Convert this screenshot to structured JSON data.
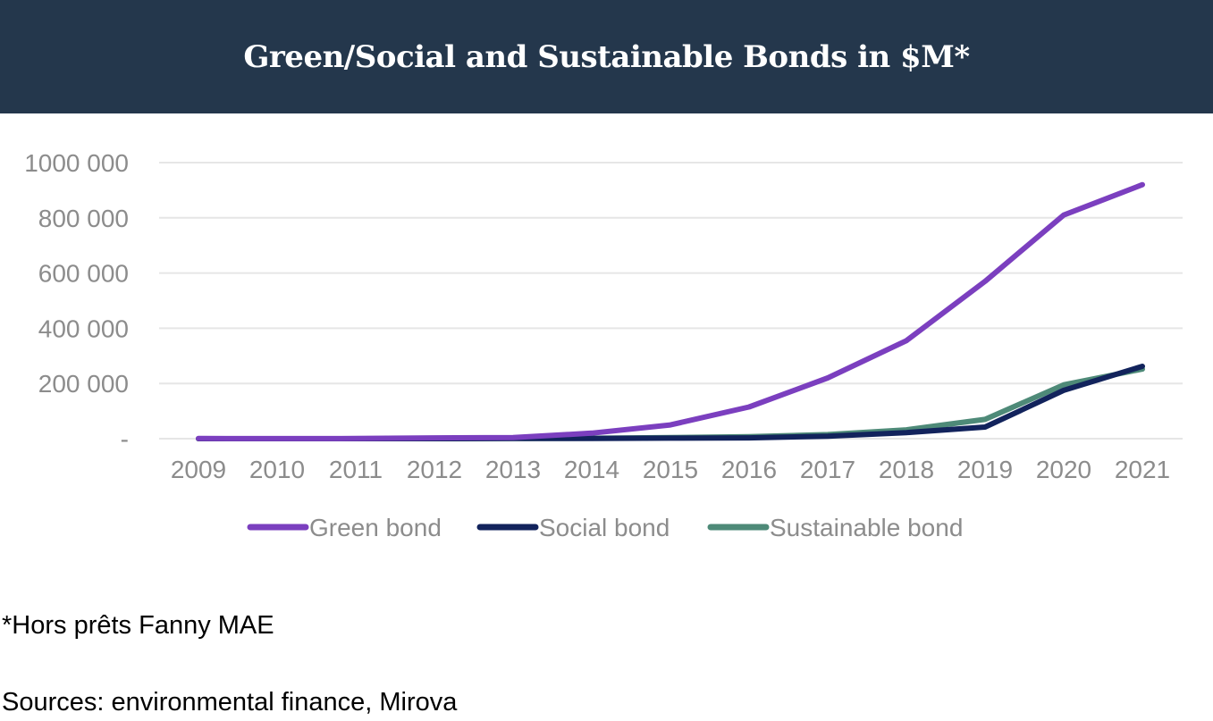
{
  "colors": {
    "header_bg": "#24374c",
    "grid": "#e6e6e6",
    "axis_text": "#8c8c8c"
  },
  "footnotes": {
    "note": "*Hors prêts Fanny MAE",
    "sources": "Sources: environmental finance, Mirova"
  },
  "chart_data": {
    "type": "line",
    "title": "Green/Social and Sustainable Bonds in $M*",
    "xlabel": "",
    "ylabel": "",
    "x": [
      "2009",
      "2010",
      "2011",
      "2012",
      "2013",
      "2014",
      "2015",
      "2016",
      "2017",
      "2018",
      "2019",
      "2020",
      "2021"
    ],
    "ylim": [
      0,
      1000000
    ],
    "yticks": [
      0,
      200000,
      400000,
      600000,
      800000,
      1000000
    ],
    "ytick_labels": [
      "-",
      "200 000",
      "400 000",
      "600 000",
      "800 000",
      "1000 000"
    ],
    "grid": true,
    "legend_position": "bottom",
    "series": [
      {
        "name": "Green bond",
        "color": "#7b3fbf",
        "values": [
          800,
          300,
          800,
          3000,
          4000,
          20000,
          50000,
          115000,
          220000,
          355000,
          570000,
          810000,
          920000
        ]
      },
      {
        "name": "Social bond",
        "color": "#12235c",
        "values": [
          0,
          0,
          0,
          0,
          500,
          1000,
          2000,
          3000,
          9000,
          22000,
          42000,
          175000,
          262000
        ]
      },
      {
        "name": "Sustainable bond",
        "color": "#4e8a78",
        "values": [
          0,
          0,
          0,
          0,
          500,
          1500,
          4000,
          7000,
          15000,
          32000,
          70000,
          195000,
          252000
        ]
      }
    ]
  }
}
